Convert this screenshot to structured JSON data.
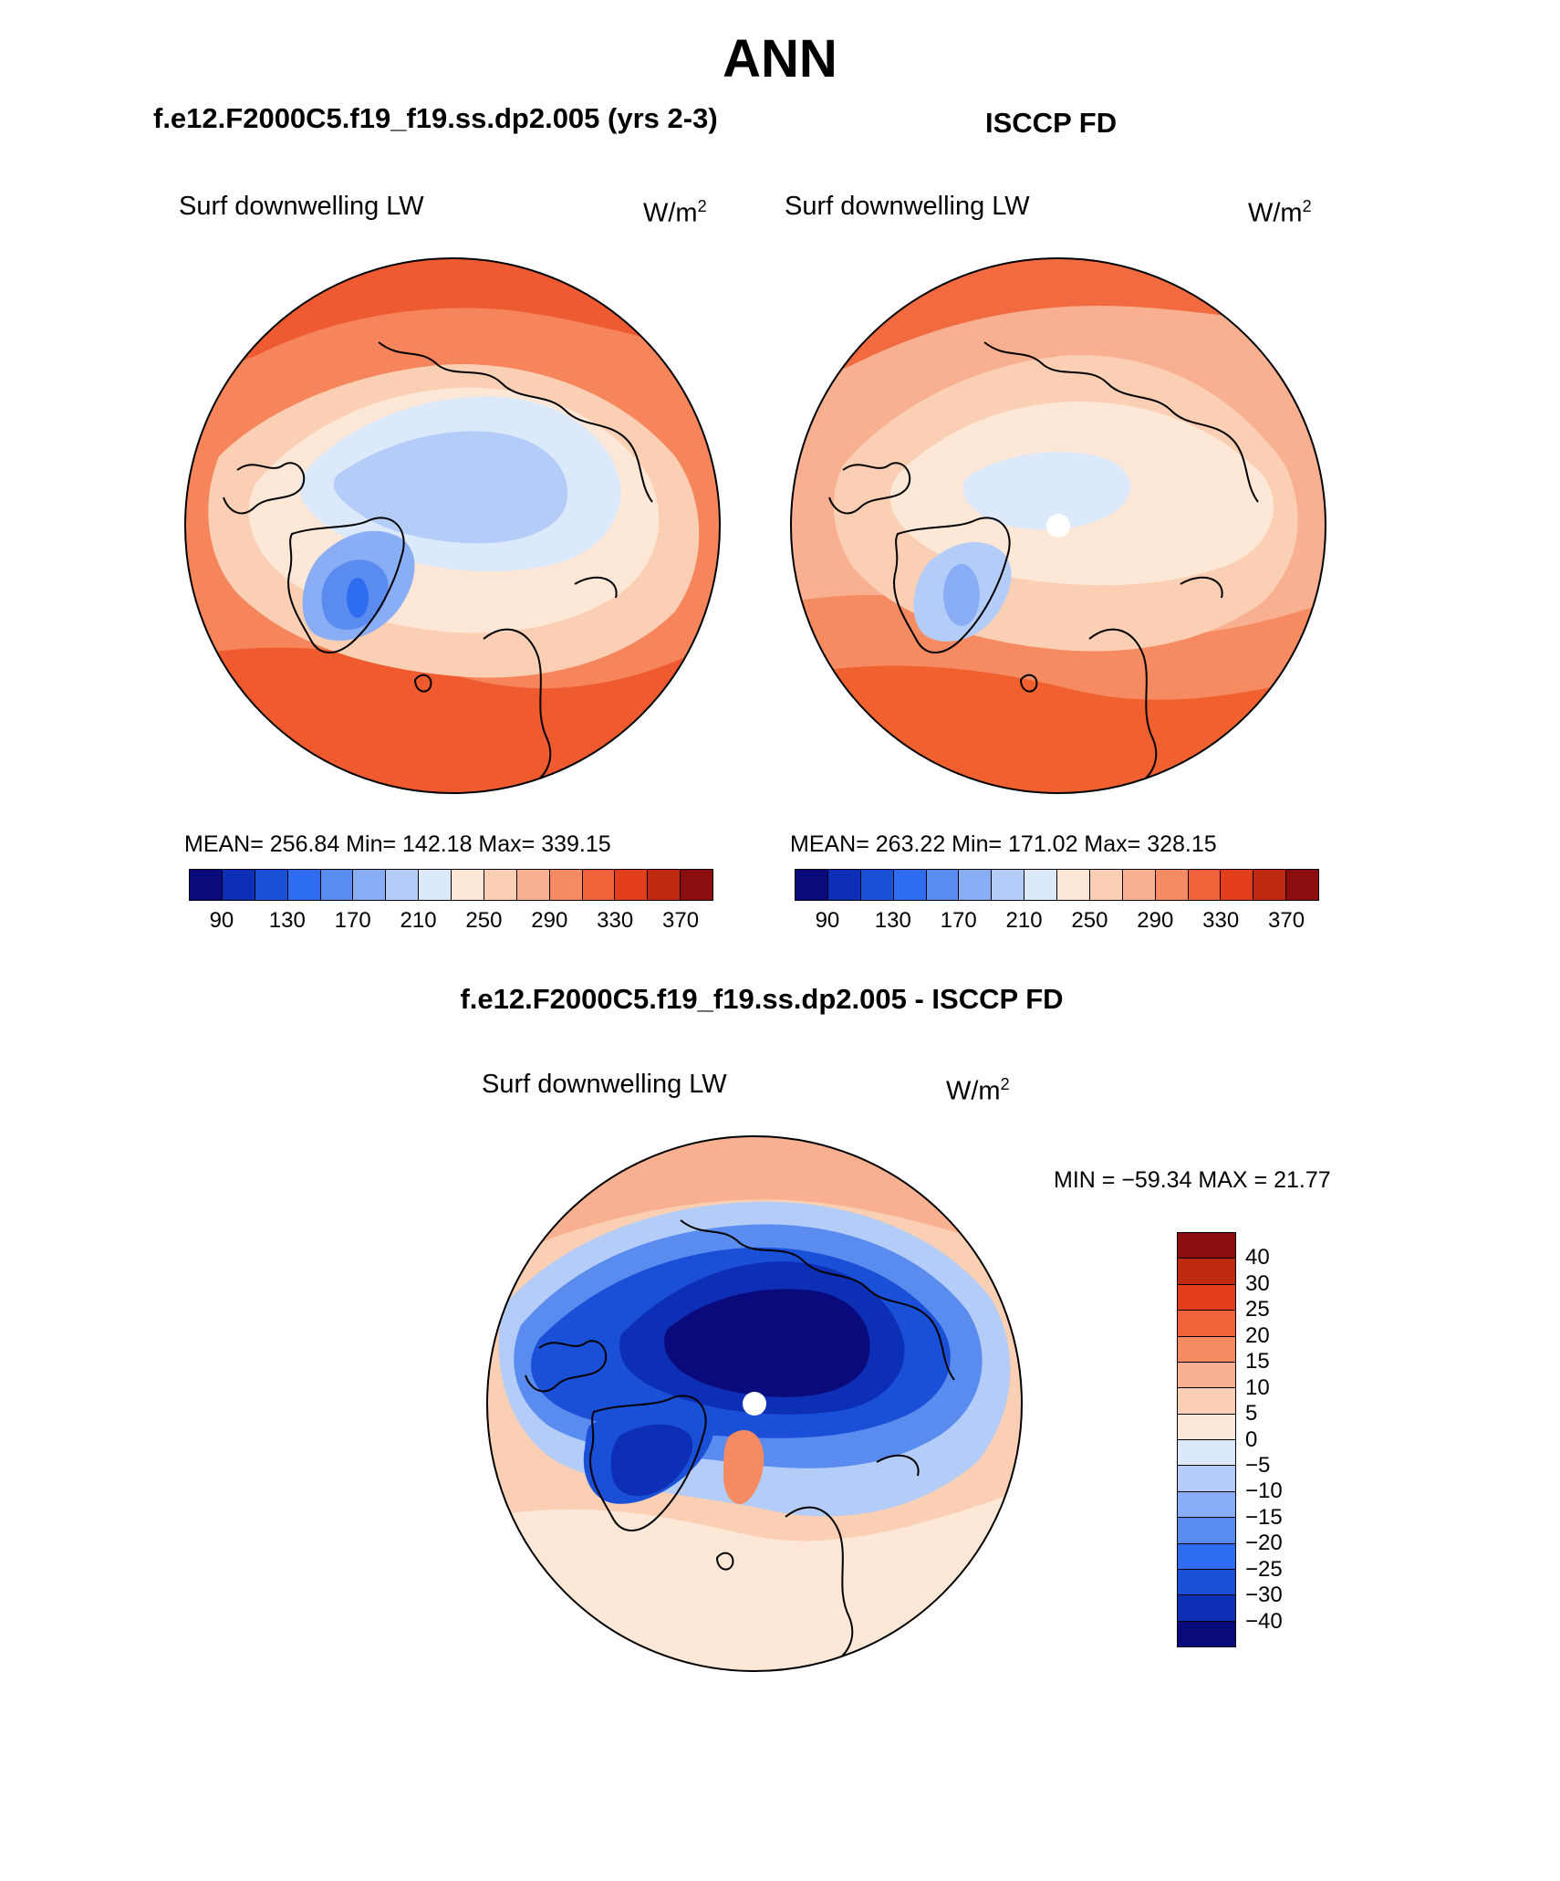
{
  "title": "ANN",
  "panels": [
    {
      "case_title": "f.e12.F2000C5.f19_f19.ss.dp2.005 (yrs 2-3)",
      "variable": "Surf downwelling LW",
      "units": "W/m",
      "units_sup": "2",
      "stats_text": "MEAN= 256.84   Min= 142.18   Max= 339.15"
    },
    {
      "case_title": "ISCCP FD",
      "variable": "Surf downwelling LW",
      "units": "W/m",
      "units_sup": "2",
      "stats_text": "MEAN= 263.22   Min= 171.02   Max= 328.15"
    },
    {
      "case_title": "f.e12.F2000C5.f19_f19.ss.dp2.005 - ISCCP FD",
      "variable": "Surf downwelling LW",
      "units": "W/m",
      "units_sup": "2",
      "stats_text": "MIN = −59.34 MAX =  21.77"
    }
  ],
  "field_colorbar": {
    "colors": [
      "#0a0a7d",
      "#0d2fb5",
      "#1a4fd8",
      "#2e6cf0",
      "#5a8cf0",
      "#8aaef5",
      "#b4cdf8",
      "#dce9fb",
      "#fde8d8",
      "#fbcfb3",
      "#f9b090",
      "#f68b62",
      "#f1623a",
      "#e23e1b",
      "#bf2a10",
      "#8b0d0d"
    ],
    "tick_labels": [
      "90",
      "130",
      "170",
      "210",
      "250",
      "290",
      "330",
      "370"
    ],
    "tick_after_cell": [
      1,
      3,
      5,
      7,
      9,
      11,
      13,
      15
    ]
  },
  "diff_colorbar": {
    "colors_top_to_bottom": [
      "#8b0d0d",
      "#bf2a10",
      "#e23e1b",
      "#f1623a",
      "#f68b62",
      "#f9b090",
      "#fbcfb3",
      "#fde8d8",
      "#dce9fb",
      "#b4cdf8",
      "#8aaef5",
      "#5a8cf0",
      "#2e6cf0",
      "#1a4fd8",
      "#0d2fb5",
      "#0a0a7d"
    ],
    "tick_labels": [
      "40",
      "30",
      "25",
      "20",
      "15",
      "10",
      "5",
      "0",
      "−5",
      "−10",
      "−15",
      "−20",
      "−25",
      "−30",
      "−40"
    ]
  }
}
